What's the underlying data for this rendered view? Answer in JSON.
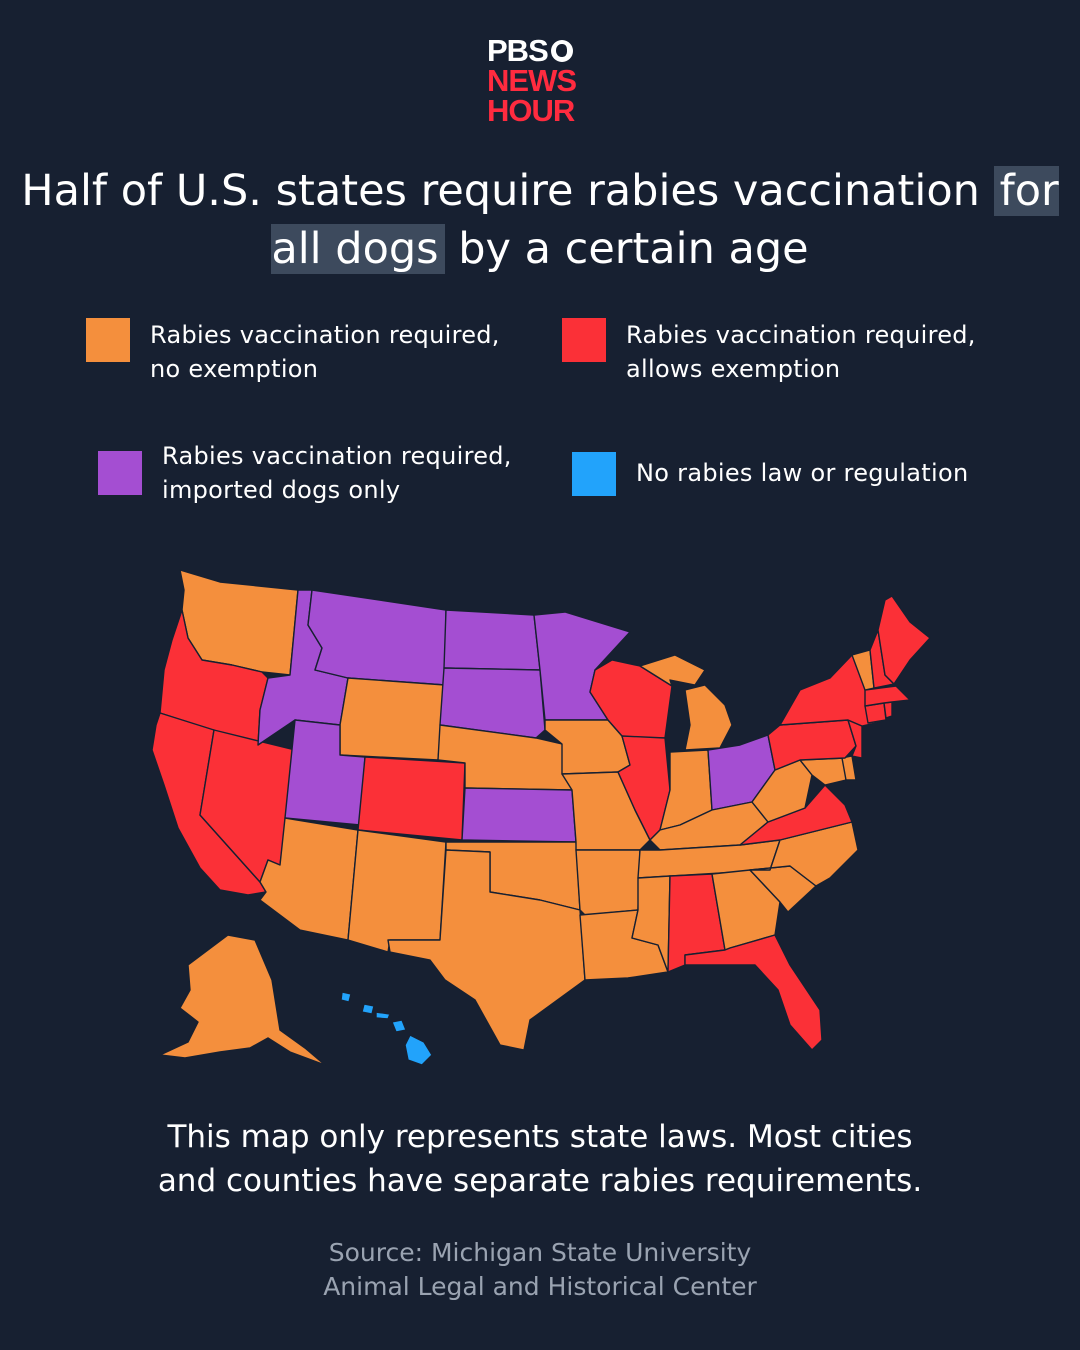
{
  "logo": {
    "line1": "PBS",
    "line2": "NEWS",
    "line3": "HOUR"
  },
  "title": {
    "part1": "Half of U.S. states require rabies vaccination ",
    "highlight": "for all dogs",
    "part2": " by a certain age"
  },
  "colors": {
    "background": "#172031",
    "no_exemption": "#f48f3d",
    "allows_exemption": "#fb3037",
    "imported_only": "#a44ed2",
    "no_law": "#22a3fb"
  },
  "legend": [
    {
      "key": "no_exemption",
      "label": "Rabies vaccination required,\nno exemption"
    },
    {
      "key": "allows_exemption",
      "label": "Rabies vaccination required,\nallows exemption"
    },
    {
      "key": "imported_only",
      "label": "Rabies vaccination required,\nimported dogs only"
    },
    {
      "key": "no_law",
      "label": "No rabies law or regulation"
    }
  ],
  "map_data": {
    "type": "choropleth",
    "states": {
      "WA": "no_exemption",
      "OR": "allows_exemption",
      "CA": "allows_exemption",
      "NV": "allows_exemption",
      "ID": "imported_only",
      "MT": "imported_only",
      "WY": "no_exemption",
      "UT": "imported_only",
      "CO": "allows_exemption",
      "AZ": "no_exemption",
      "NM": "no_exemption",
      "ND": "imported_only",
      "SD": "imported_only",
      "NE": "no_exemption",
      "KS": "imported_only",
      "OK": "no_exemption",
      "TX": "no_exemption",
      "MN": "imported_only",
      "IA": "no_exemption",
      "MO": "no_exemption",
      "AR": "no_exemption",
      "LA": "no_exemption",
      "WI": "allows_exemption",
      "IL": "allows_exemption",
      "MI": "no_exemption",
      "IN": "no_exemption",
      "OH": "imported_only",
      "KY": "no_exemption",
      "TN": "no_exemption",
      "MS": "no_exemption",
      "AL": "allows_exemption",
      "GA": "no_exemption",
      "FL": "allows_exemption",
      "SC": "no_exemption",
      "NC": "no_exemption",
      "VA": "allows_exemption",
      "WV": "no_exemption",
      "MD": "no_exemption",
      "DE": "no_exemption",
      "PA": "allows_exemption",
      "NJ": "allows_exemption",
      "NY": "allows_exemption",
      "CT": "allows_exemption",
      "RI": "allows_exemption",
      "MA": "allows_exemption",
      "VT": "no_exemption",
      "NH": "allows_exemption",
      "ME": "allows_exemption",
      "AK": "no_exemption",
      "HI": "no_law"
    }
  },
  "footnote": "This map only represents state laws. Most cities\nand counties have separate rabies requirements.",
  "source": "Source: Michigan State University\nAnimal Legal and Historical Center"
}
